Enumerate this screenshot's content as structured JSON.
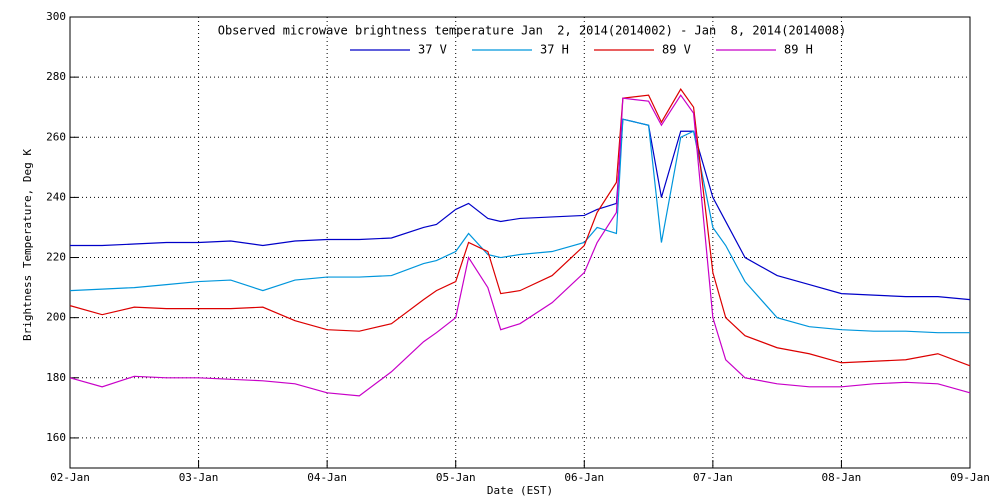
{
  "chart_data": {
    "type": "line",
    "title": "Observed microwave brightness temperature Jan  2, 2014(2014002) - Jan  8, 2014(2014008)",
    "x_label": "Date (EST)",
    "y_label": "Brightness Temperature, Deg K",
    "x": [
      2,
      2.25,
      2.5,
      2.75,
      3,
      3.25,
      3.5,
      3.75,
      4,
      4.25,
      4.5,
      4.75,
      4.85,
      5,
      5.1,
      5.25,
      5.35,
      5.5,
      5.75,
      6,
      6.1,
      6.25,
      6.3,
      6.5,
      6.6,
      6.75,
      6.85,
      7,
      7.1,
      7.25,
      7.5,
      7.75,
      8,
      8.25,
      8.5,
      8.75,
      9
    ],
    "series": [
      {
        "name": "37 V",
        "color": "#0000c8",
        "values": [
          224,
          224,
          224.5,
          225,
          225,
          225.5,
          224,
          225.5,
          226,
          226,
          226.5,
          230,
          231,
          236,
          238,
          233,
          232,
          233,
          233.5,
          234,
          236,
          238,
          266,
          264,
          240,
          262,
          262,
          240,
          232,
          220,
          214,
          211,
          208,
          207.5,
          207,
          207,
          206
        ]
      },
      {
        "name": "37 H",
        "color": "#0096dc",
        "values": [
          209,
          209.5,
          210,
          211,
          212,
          212.5,
          209,
          212.5,
          213.5,
          213.5,
          214,
          218,
          219,
          222,
          228,
          221,
          220,
          221,
          222,
          225,
          230,
          228,
          266,
          264,
          225,
          260,
          262,
          230,
          224,
          212,
          200,
          197,
          196,
          195.5,
          195.5,
          195,
          195
        ]
      },
      {
        "name": "89 V",
        "color": "#dc0000",
        "values": [
          204,
          201,
          203.5,
          203,
          203,
          203,
          203.5,
          199,
          196,
          195.5,
          198,
          206,
          209,
          212,
          225,
          222,
          208,
          209,
          214,
          224,
          235,
          245,
          273,
          274,
          265,
          276,
          270,
          215,
          200,
          194,
          190,
          188,
          185,
          185.5,
          186,
          188,
          184
        ]
      },
      {
        "name": "89 H",
        "color": "#c800c8",
        "values": [
          180,
          177,
          180.5,
          180,
          180,
          179.5,
          179,
          178,
          175,
          174,
          182,
          192,
          195,
          200,
          220,
          210,
          196,
          198,
          205,
          215,
          225,
          235,
          273,
          272,
          264,
          274,
          268,
          200,
          186,
          180,
          178,
          177,
          177,
          178,
          178.5,
          178,
          175
        ]
      }
    ],
    "xlim": [
      2,
      9
    ],
    "xticks": [
      {
        "value": 2,
        "label": "02-Jan"
      },
      {
        "value": 3,
        "label": "03-Jan"
      },
      {
        "value": 4,
        "label": "04-Jan"
      },
      {
        "value": 5,
        "label": "05-Jan"
      },
      {
        "value": 6,
        "label": "06-Jan"
      },
      {
        "value": 7,
        "label": "07-Jan"
      },
      {
        "value": 8,
        "label": "08-Jan"
      },
      {
        "value": 9,
        "label": "09-Jan"
      }
    ],
    "ylim": [
      150,
      300
    ],
    "yticks": [
      160,
      180,
      200,
      220,
      240,
      260,
      280,
      300
    ],
    "grid": true
  }
}
